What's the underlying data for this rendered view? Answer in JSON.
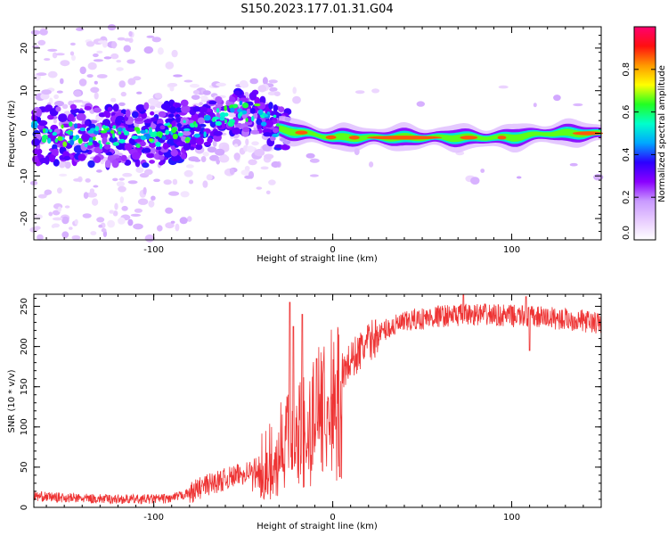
{
  "figure_title": "S150.2023.177.01.31.G04",
  "colors": {
    "snr_line": "#ee3333",
    "spectrogram_background": "#ffffff",
    "colormap": [
      "#ffffff",
      "#e8ccff",
      "#c99aff",
      "#8a00ff",
      "#2c00ff",
      "#00a8ff",
      "#00ffcc",
      "#22ff22",
      "#ffff00",
      "#ff9900",
      "#ff1010",
      "#ff0070"
    ]
  },
  "chart_data": [
    {
      "id": "spectrogram",
      "type": "heatmap",
      "xlabel": "Height of straight line (km)",
      "ylabel": "Frequency (Hz)",
      "xlim": [
        -167,
        150
      ],
      "ylim": [
        -25,
        25
      ],
      "xticks": [
        -100,
        0,
        100
      ],
      "yticks": [
        -20,
        -10,
        0,
        10,
        20
      ],
      "grid": false,
      "description_ridge": [
        {
          "x": -160,
          "freq": 0
        },
        {
          "x": -120,
          "freq": -1
        },
        {
          "x": -90,
          "freq": 0
        },
        {
          "x": -70,
          "freq": 2
        },
        {
          "x": -55,
          "freq": 5
        },
        {
          "x": -40,
          "freq": 5
        },
        {
          "x": -30,
          "freq": 1
        },
        {
          "x": -15,
          "freq": 0
        },
        {
          "x": 0,
          "freq": -1
        },
        {
          "x": 40,
          "freq": -1
        },
        {
          "x": 60,
          "freq": -1
        },
        {
          "x": 80,
          "freq": -1
        },
        {
          "x": 100,
          "freq": -1
        },
        {
          "x": 120,
          "freq": 0
        },
        {
          "x": 150,
          "freq": 0
        }
      ]
    },
    {
      "id": "colorbar",
      "type": "heatmap",
      "label": "Normalized spectral amplitude",
      "range": [
        0,
        1
      ],
      "ticks": [
        "0.0",
        "0.2",
        "0.4",
        "0.6",
        "0.8"
      ]
    },
    {
      "id": "snr",
      "type": "line",
      "xlabel": "Height of straight line (km)",
      "ylabel": "SNR (10 * v/v)",
      "xlim": [
        -167,
        150
      ],
      "ylim": [
        0,
        265
      ],
      "xticks": [
        -100,
        0,
        100
      ],
      "yticks": [
        0,
        50,
        100,
        150,
        200,
        250
      ],
      "grid": false,
      "envelope": [
        {
          "x": -167,
          "y": 14
        },
        {
          "x": -140,
          "y": 11
        },
        {
          "x": -110,
          "y": 10
        },
        {
          "x": -90,
          "y": 11
        },
        {
          "x": -80,
          "y": 18
        },
        {
          "x": -70,
          "y": 28
        },
        {
          "x": -60,
          "y": 35
        },
        {
          "x": -50,
          "y": 42
        },
        {
          "x": -40,
          "y": 52
        },
        {
          "x": -30,
          "y": 75
        },
        {
          "x": -20,
          "y": 105
        },
        {
          "x": -10,
          "y": 130
        },
        {
          "x": 0,
          "y": 150
        },
        {
          "x": 10,
          "y": 182
        },
        {
          "x": 20,
          "y": 205
        },
        {
          "x": 30,
          "y": 222
        },
        {
          "x": 45,
          "y": 233
        },
        {
          "x": 60,
          "y": 238
        },
        {
          "x": 80,
          "y": 240
        },
        {
          "x": 100,
          "y": 238
        },
        {
          "x": 120,
          "y": 236
        },
        {
          "x": 140,
          "y": 232
        },
        {
          "x": 150,
          "y": 228
        }
      ],
      "spikes": [
        {
          "x": -24,
          "y": 255
        },
        {
          "x": -22,
          "y": 225
        },
        {
          "x": -17,
          "y": 240
        },
        {
          "x": -9,
          "y": 185
        },
        {
          "x": -4,
          "y": 90
        },
        {
          "x": 4,
          "y": 38
        },
        {
          "x": 73,
          "y": 265
        },
        {
          "x": 108,
          "y": 262
        },
        {
          "x": 110,
          "y": 195
        }
      ]
    }
  ]
}
